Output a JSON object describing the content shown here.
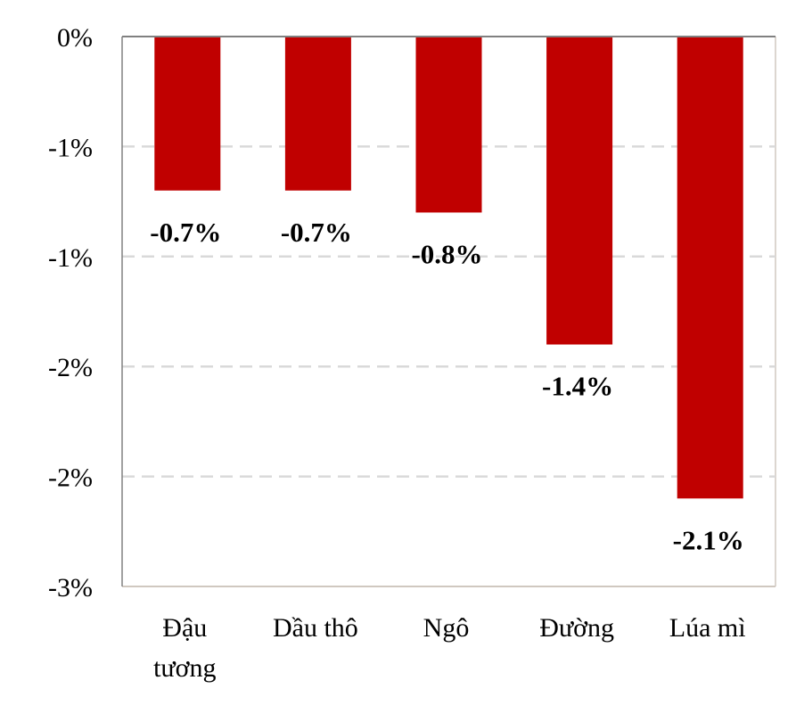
{
  "chart_data": {
    "type": "bar",
    "categories": [
      [
        "Đậu",
        "tương"
      ],
      [
        "Dầu thô"
      ],
      [
        "Ngô"
      ],
      [
        "Đường"
      ],
      [
        "Lúa mì"
      ]
    ],
    "values": [
      -0.7,
      -0.7,
      -0.8,
      -1.4,
      -2.1
    ],
    "data_labels": [
      "-0.7%",
      "-0.7%",
      "-0.8%",
      "-1.4%",
      "-2.1%"
    ],
    "ylim": [
      -2.5,
      0
    ],
    "y_ticks": [
      0,
      -0.5,
      -1.0,
      -1.5,
      -2.0,
      -2.5
    ],
    "y_tick_labels": [
      "0%",
      "-1%",
      "-1%",
      "-2%",
      "-2%",
      "-3%"
    ],
    "grid": "horizontal dashed",
    "colors": {
      "bar": "#c00000",
      "grid": "#d9d9d9",
      "axis": "#808080",
      "frame": "#d0c8c0"
    }
  }
}
